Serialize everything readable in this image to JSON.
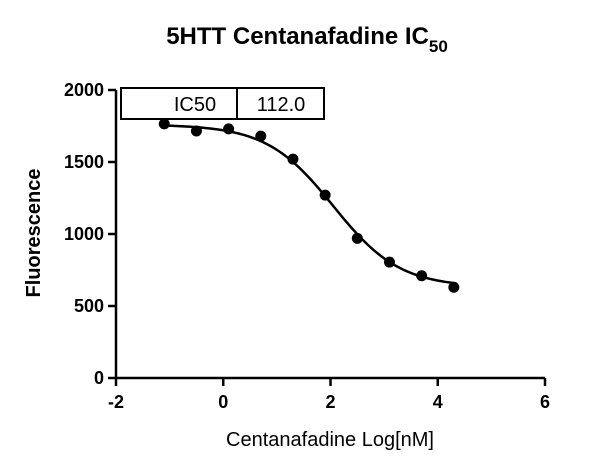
{
  "chart_data": {
    "type": "scatter",
    "title": "5HTT Centanafadine IC",
    "title_subscript": "50",
    "xlabel": "Centanafadine Log[nM]",
    "ylabel": "Fluorescence",
    "xlim": [
      -2,
      6
    ],
    "ylim": [
      0,
      2000
    ],
    "x_ticks": [
      -2,
      0,
      2,
      4,
      6
    ],
    "y_ticks": [
      0,
      500,
      1000,
      1500,
      2000
    ],
    "x_tick_labels": [
      "-2",
      "0",
      "2",
      "4",
      "6"
    ],
    "y_tick_labels": [
      "0",
      "500",
      "1000",
      "1500",
      "2000"
    ],
    "grid": false,
    "x": [
      -1.1,
      -0.5,
      0.1,
      0.7,
      1.3,
      1.9,
      2.5,
      3.1,
      3.7,
      4.3
    ],
    "y": [
      1765,
      1715,
      1730,
      1680,
      1520,
      1270,
      970,
      805,
      710,
      630
    ],
    "fit_curve": {
      "model": "four-parameter logistic",
      "top": 1760,
      "bottom": 630,
      "log_ic50": 2.05,
      "hill_slope": -0.7,
      "x_range": [
        -1.1,
        4.3
      ]
    },
    "ic50_table": {
      "label": "IC50",
      "value": "112.0"
    },
    "colors": {
      "points": "#000000",
      "curve": "#000000"
    }
  }
}
